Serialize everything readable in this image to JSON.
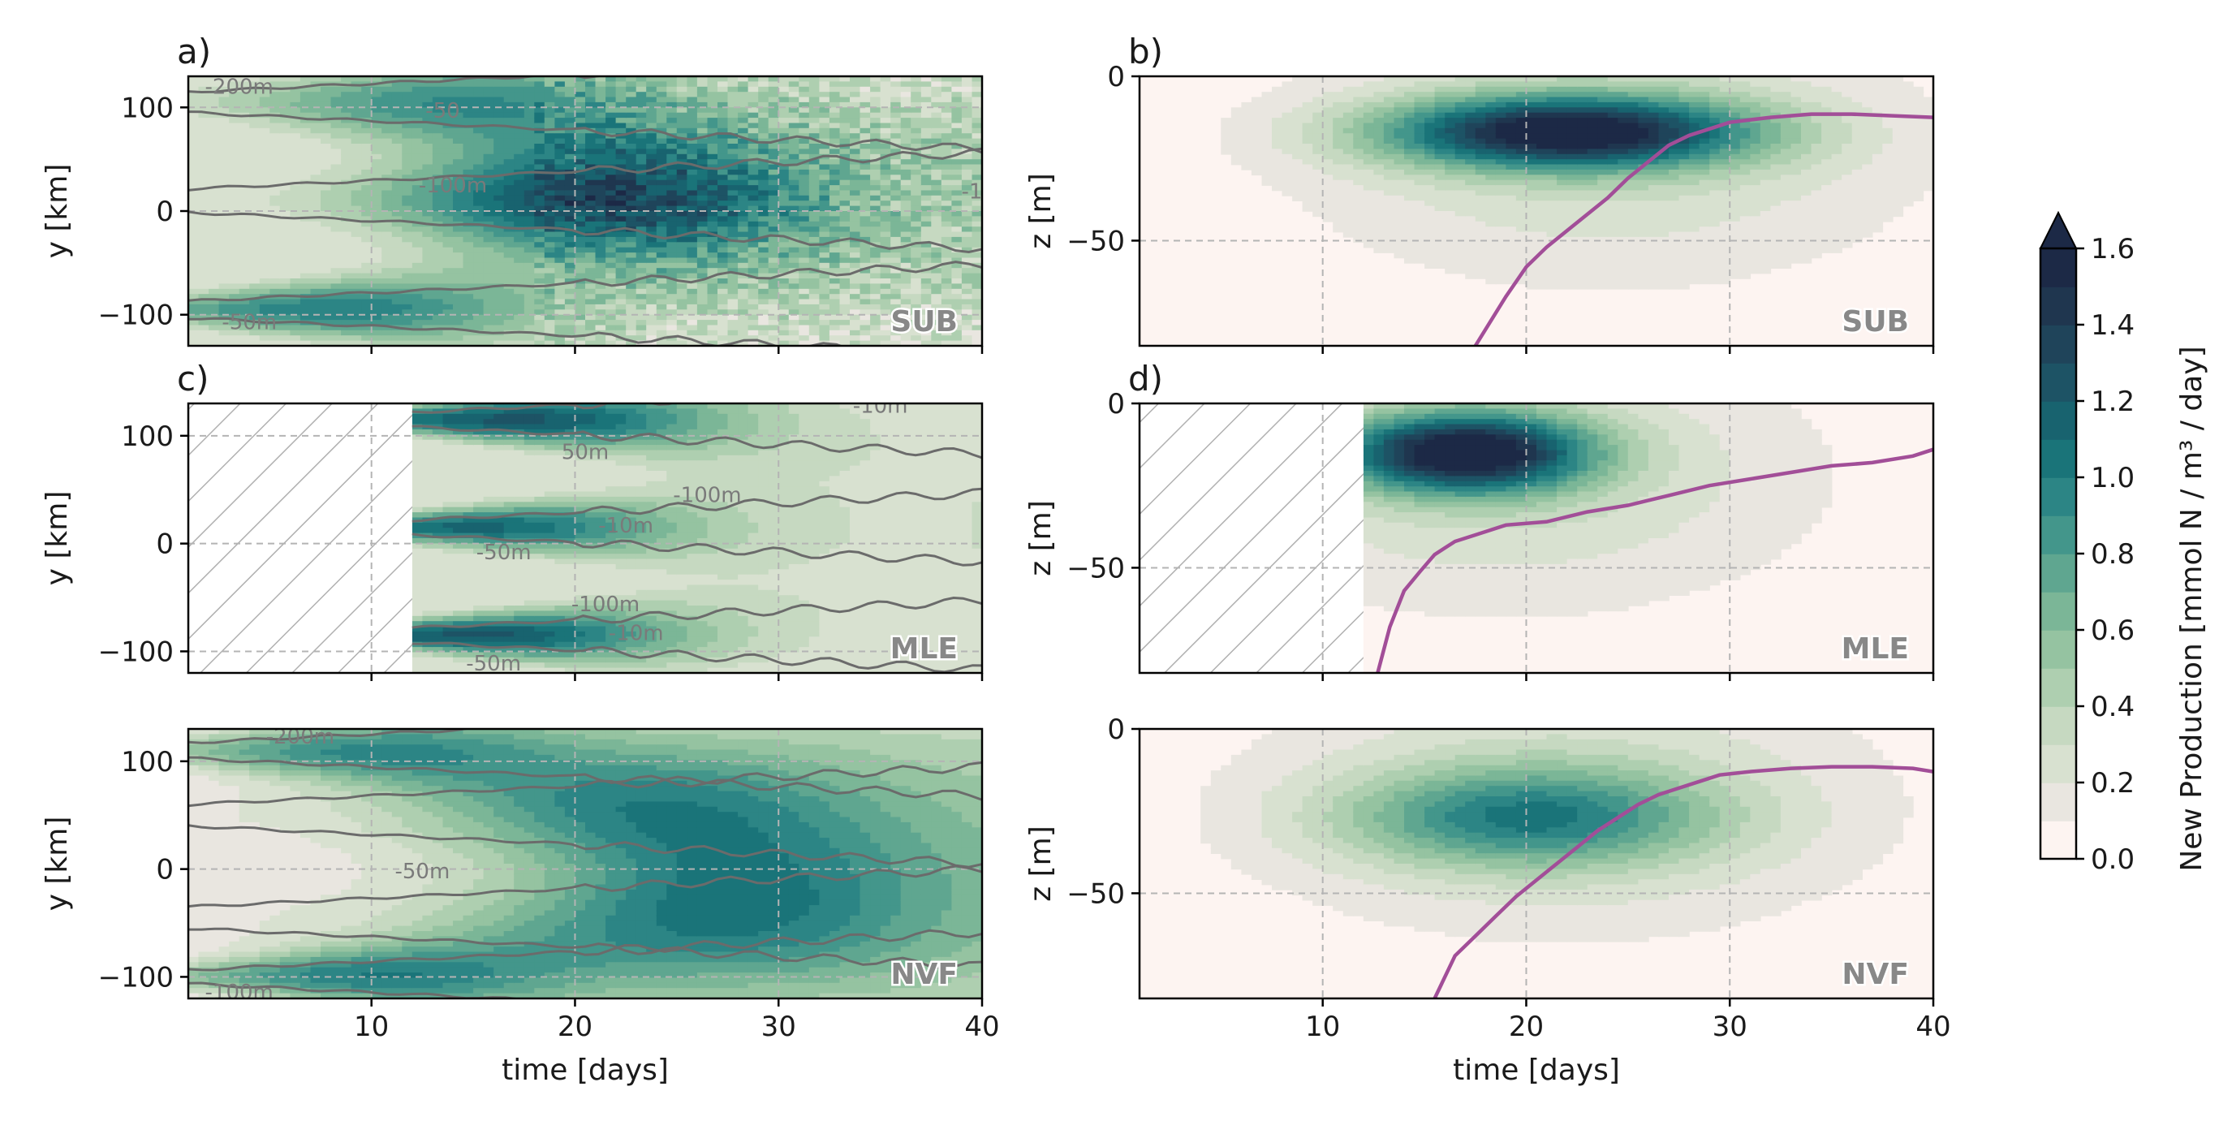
{
  "chart_data": [
    {
      "id": "a",
      "type": "heatmap",
      "panel_label": "a)",
      "corner_label": "SUB",
      "xlabel": "",
      "ylabel": "y [km]",
      "xlim": [
        1,
        40
      ],
      "ylim": [
        -130,
        130
      ],
      "xticks": [
        10,
        20,
        30,
        40
      ],
      "show_xticklabels": false,
      "yticks": [
        100,
        0,
        -100
      ],
      "yticklabels": [
        "100",
        "0",
        "−100"
      ],
      "grid": true,
      "bands": [
        {
          "center": 105,
          "width": 22,
          "onset": 1,
          "peak_t": 14,
          "amp": 0.7
        },
        {
          "center": 10,
          "width": 25,
          "onset": 1,
          "peak_t": 21,
          "amp": 1.05
        },
        {
          "center": -95,
          "width": 18,
          "onset": 1,
          "peak_t": 8,
          "amp": 0.8
        }
      ],
      "background_level": 0.25,
      "contour_labels": [
        {
          "text": "-200m",
          "x": 3.5,
          "y": 119
        },
        {
          "text": "-50",
          "x": 13.5,
          "y": 96
        },
        {
          "text": "-100m",
          "x": 14,
          "y": 24
        },
        {
          "text": "-50m",
          "x": 4,
          "y": -108
        },
        {
          "text": "-1",
          "x": 39.5,
          "y": 18
        }
      ]
    },
    {
      "id": "b",
      "type": "heatmap",
      "panel_label": "b)",
      "corner_label": "SUB",
      "xlabel": "",
      "ylabel": "z [m]",
      "xlim": [
        1,
        40
      ],
      "ylim": [
        -82,
        0
      ],
      "xticks": [
        10,
        20,
        30,
        40
      ],
      "show_xticklabels": false,
      "yticks": [
        0,
        -50
      ],
      "yticklabels": [
        "0",
        "−50"
      ],
      "grid": true,
      "blob": {
        "t0": 22,
        "z0": -17,
        "st": 9,
        "sz": 11,
        "amp": 1.45
      },
      "mld_line": {
        "t": [
          17.5,
          19,
          20,
          21,
          22,
          23,
          24,
          25,
          26,
          27,
          28,
          29,
          30,
          32,
          34,
          36,
          38,
          40
        ],
        "z": [
          -82,
          -67,
          -58,
          -52,
          -47,
          -42,
          -37,
          -31,
          -26,
          -21,
          -18,
          -16,
          -14,
          -12.5,
          -11.5,
          -11.5,
          -12,
          -12.5
        ]
      }
    },
    {
      "id": "c",
      "type": "heatmap",
      "panel_label": "c)",
      "corner_label": "MLE",
      "xlabel": "",
      "ylabel": "y [km]",
      "xlim": [
        1,
        40
      ],
      "ylim": [
        -120,
        130
      ],
      "xticks": [
        10,
        20,
        30,
        40
      ],
      "show_xticklabels": false,
      "yticks": [
        100,
        0,
        -100
      ],
      "yticklabels": [
        "100",
        "0",
        "−100"
      ],
      "grid": true,
      "hatch_until": 12,
      "bands": [
        {
          "center": 115,
          "width": 15,
          "onset": 12,
          "peak_t": 17,
          "amp": 1.05
        },
        {
          "center": 15,
          "width": 15,
          "onset": 12,
          "peak_t": 15,
          "amp": 0.95
        },
        {
          "center": -85,
          "width": 15,
          "onset": 12,
          "peak_t": 15,
          "amp": 1.05
        }
      ],
      "background_level": 0.2,
      "contour_labels": [
        {
          "text": "-10m",
          "x": 35,
          "y": 127
        },
        {
          "text": "50m",
          "x": 20.5,
          "y": 84
        },
        {
          "text": "-100m",
          "x": 26.5,
          "y": 44
        },
        {
          "text": "-10m",
          "x": 22.5,
          "y": 16
        },
        {
          "text": "-50m",
          "x": 16.5,
          "y": -9
        },
        {
          "text": "-100m",
          "x": 21.5,
          "y": -57
        },
        {
          "text": "-10m",
          "x": 23,
          "y": -84
        },
        {
          "text": "-50m",
          "x": 16,
          "y": -112
        }
      ]
    },
    {
      "id": "d",
      "type": "heatmap",
      "panel_label": "d)",
      "corner_label": "MLE",
      "xlabel": "",
      "ylabel": "z [m]",
      "xlim": [
        1,
        40
      ],
      "ylim": [
        -82,
        0
      ],
      "xticks": [
        10,
        20,
        30,
        40
      ],
      "show_xticklabels": false,
      "yticks": [
        0,
        -50
      ],
      "yticklabels": [
        "0",
        "−50"
      ],
      "grid": true,
      "hatch_until": 12,
      "blob": {
        "t0": 17,
        "z0": -15,
        "st": 6,
        "sz": 12,
        "amp": 1.5
      },
      "mld_line": {
        "t": [
          12.7,
          13.3,
          14,
          14.8,
          15.5,
          16.5,
          17.5,
          19,
          21,
          23,
          25,
          27,
          29,
          31,
          33,
          35,
          37,
          39,
          40
        ],
        "z": [
          -82,
          -68,
          -57,
          -51,
          -46,
          -42,
          -40,
          -37,
          -36,
          -33,
          -31,
          -28,
          -25,
          -23,
          -21,
          -19,
          -18,
          -16,
          -14
        ]
      }
    },
    {
      "id": "e",
      "type": "heatmap",
      "panel_label": "",
      "corner_label": "NVF",
      "xlabel": "time [days]",
      "ylabel": "y [km]",
      "xlim": [
        1,
        40
      ],
      "ylim": [
        -120,
        130
      ],
      "xticks": [
        10,
        20,
        30,
        40
      ],
      "show_xticklabels": true,
      "yticks": [
        100,
        0,
        -100
      ],
      "yticklabels": [
        "100",
        "0",
        "−100"
      ],
      "grid": true,
      "bands": [
        {
          "center": 110,
          "width": 16,
          "onset": 1,
          "peak_t": 10,
          "amp": 0.7
        },
        {
          "center": 50,
          "width": 22,
          "onset": 1,
          "peak_t": 24,
          "amp": 0.6
        },
        {
          "center": -45,
          "width": 22,
          "onset": 1,
          "peak_t": 27,
          "amp": 0.6
        },
        {
          "center": -100,
          "width": 14,
          "onset": 1,
          "peak_t": 10,
          "amp": 0.75
        }
      ],
      "background_level": 0.15,
      "contour_labels": [
        {
          "text": "-200m",
          "x": 6.5,
          "y": 122
        },
        {
          "text": "-50m",
          "x": 12.5,
          "y": -3
        },
        {
          "text": "-100m",
          "x": 3.5,
          "y": -115
        }
      ]
    },
    {
      "id": "f",
      "type": "heatmap",
      "panel_label": "",
      "corner_label": "NVF",
      "xlabel": "time [days]",
      "ylabel": "z [m]",
      "xlim": [
        1,
        40
      ],
      "ylim": [
        -82,
        0
      ],
      "xticks": [
        10,
        20,
        30,
        40
      ],
      "show_xticklabels": true,
      "yticks": [
        0,
        -50
      ],
      "yticklabels": [
        "0",
        "−50"
      ],
      "grid": true,
      "blob": {
        "t0": 20,
        "z0": -27,
        "st": 9,
        "sz": 15,
        "amp": 0.75
      },
      "mld_line": {
        "t": [
          15.5,
          16.5,
          17.5,
          18.5,
          19.5,
          20.5,
          21.5,
          22.5,
          23.5,
          24.5,
          25.5,
          26.5,
          27.5,
          28.5,
          29.5,
          31,
          33,
          35,
          37,
          39,
          40
        ],
        "z": [
          -82,
          -69,
          -63,
          -57,
          -51,
          -46,
          -41,
          -36,
          -31,
          -27,
          -23,
          -20,
          -18,
          -16,
          -14,
          -13,
          -12,
          -11.5,
          -11.5,
          -12,
          -13
        ]
      }
    }
  ],
  "colorbar": {
    "label": "New Production [mmol N / m³ / day]",
    "levels": [
      0.0,
      0.1,
      0.2,
      0.3,
      0.4,
      0.5,
      0.6,
      0.7,
      0.8,
      0.9,
      1.0,
      1.1,
      1.2,
      1.3,
      1.4,
      1.5,
      1.6
    ],
    "ticks": [
      "0.0",
      "0.2",
      "0.4",
      "0.6",
      "0.8",
      "1.0",
      "1.2",
      "1.4",
      "1.6"
    ],
    "colors": [
      "#fdf4f1",
      "#e9e6e0",
      "#d8e1d0",
      "#c6d9c1",
      "#aecfb0",
      "#95c3a1",
      "#7bb697",
      "#5fa690",
      "#43968b",
      "#2c8585",
      "#1a7479",
      "#18636f",
      "#1d5365",
      "#1f445a",
      "#1f364f",
      "#1c2946"
    ],
    "extend_color": "#1c2946"
  },
  "contour_color": "#6b6b6b",
  "mld_color": "#a24e98",
  "hatch_color": "#b0b0b0"
}
